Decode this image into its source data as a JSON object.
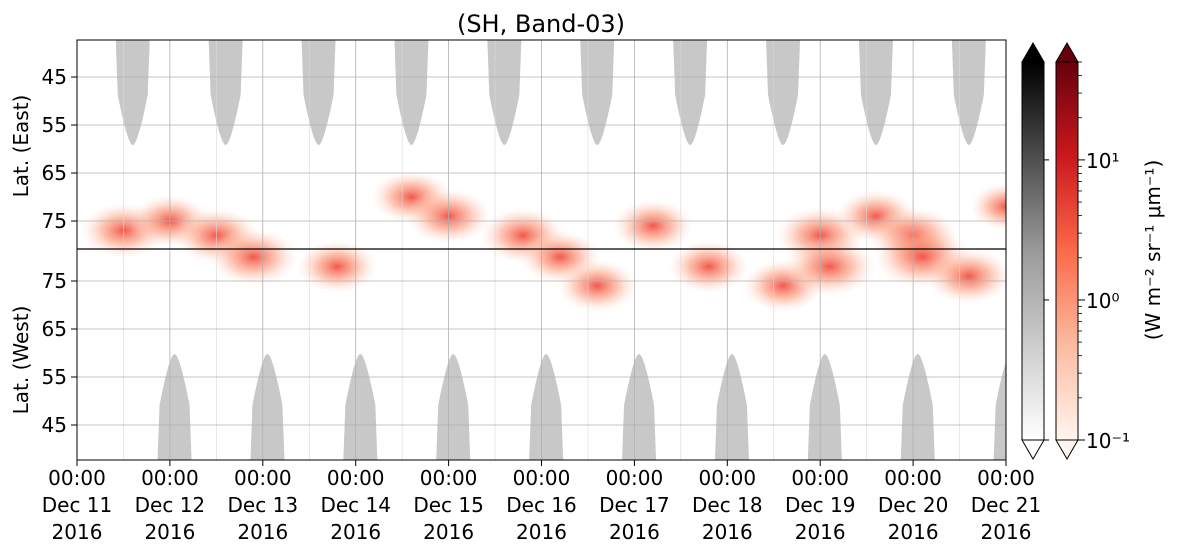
{
  "chart_data": {
    "type": "heatmap",
    "title": "(SH, Band-03)",
    "ylabel_east": "Lat. (East)",
    "ylabel_west": "Lat. (West)",
    "y_east_ticks": [
      "45",
      "55",
      "65",
      "75"
    ],
    "y_west_ticks": [
      "75",
      "65",
      "55",
      "45"
    ],
    "x_ticks": [
      {
        "time": "00:00",
        "date": "Dec 11",
        "year": "2016"
      },
      {
        "time": "00:00",
        "date": "Dec 12",
        "year": "2016"
      },
      {
        "time": "00:00",
        "date": "Dec 13",
        "year": "2016"
      },
      {
        "time": "00:00",
        "date": "Dec 14",
        "year": "2016"
      },
      {
        "time": "00:00",
        "date": "Dec 15",
        "year": "2016"
      },
      {
        "time": "00:00",
        "date": "Dec 16",
        "year": "2016"
      },
      {
        "time": "00:00",
        "date": "Dec 17",
        "year": "2016"
      },
      {
        "time": "00:00",
        "date": "Dec 18",
        "year": "2016"
      },
      {
        "time": "00:00",
        "date": "Dec 19",
        "year": "2016"
      },
      {
        "time": "00:00",
        "date": "Dec 20",
        "year": "2016"
      },
      {
        "time": "00:00",
        "date": "Dec 21",
        "year": "2016"
      }
    ],
    "colorbar_label": "(W m⁻² sr⁻¹ μm⁻¹)",
    "colorbar_ticks": [
      "10¹",
      "10⁰",
      "10⁻¹"
    ],
    "colorbar_range": [
      0.1,
      50
    ],
    "colormaps": [
      "gray",
      "Reds"
    ],
    "day_masks_east_center_days": [
      0.6,
      1.6,
      2.6,
      3.6,
      4.6,
      5.6,
      6.6,
      7.6,
      8.6,
      9.6
    ],
    "day_masks_west_center_days": [
      1.05,
      2.05,
      3.05,
      4.05,
      5.05,
      6.05,
      7.05,
      8.05,
      9.05,
      10.05
    ],
    "emission_blobs": [
      {
        "day": 0.5,
        "lat_side": "east",
        "lat": 77,
        "value": 3
      },
      {
        "day": 1.0,
        "lat_side": "east",
        "lat": 75,
        "value": 2
      },
      {
        "day": 1.5,
        "lat_side": "east",
        "lat": 78,
        "value": 3
      },
      {
        "day": 1.9,
        "lat_side": "west",
        "lat": 80,
        "value": 4
      },
      {
        "day": 2.8,
        "lat_side": "west",
        "lat": 78,
        "value": 2
      },
      {
        "day": 3.6,
        "lat_side": "east",
        "lat": 70,
        "value": 2
      },
      {
        "day": 4.0,
        "lat_side": "east",
        "lat": 74,
        "value": 3
      },
      {
        "day": 4.8,
        "lat_side": "east",
        "lat": 78,
        "value": 3
      },
      {
        "day": 5.2,
        "lat_side": "west",
        "lat": 80,
        "value": 2
      },
      {
        "day": 5.6,
        "lat_side": "west",
        "lat": 74,
        "value": 2
      },
      {
        "day": 6.2,
        "lat_side": "east",
        "lat": 76,
        "value": 2
      },
      {
        "day": 6.8,
        "lat_side": "west",
        "lat": 78,
        "value": 2
      },
      {
        "day": 7.6,
        "lat_side": "west",
        "lat": 74,
        "value": 2
      },
      {
        "day": 8.0,
        "lat_side": "east",
        "lat": 78,
        "value": 4
      },
      {
        "day": 8.1,
        "lat_side": "west",
        "lat": 78,
        "value": 5
      },
      {
        "day": 8.6,
        "lat_side": "east",
        "lat": 74,
        "value": 2
      },
      {
        "day": 9.0,
        "lat_side": "east",
        "lat": 78,
        "value": 4
      },
      {
        "day": 9.1,
        "lat_side": "west",
        "lat": 80,
        "value": 8
      },
      {
        "day": 9.6,
        "lat_side": "west",
        "lat": 76,
        "value": 3
      },
      {
        "day": 10.0,
        "lat_side": "east",
        "lat": 72,
        "value": 1
      }
    ]
  }
}
